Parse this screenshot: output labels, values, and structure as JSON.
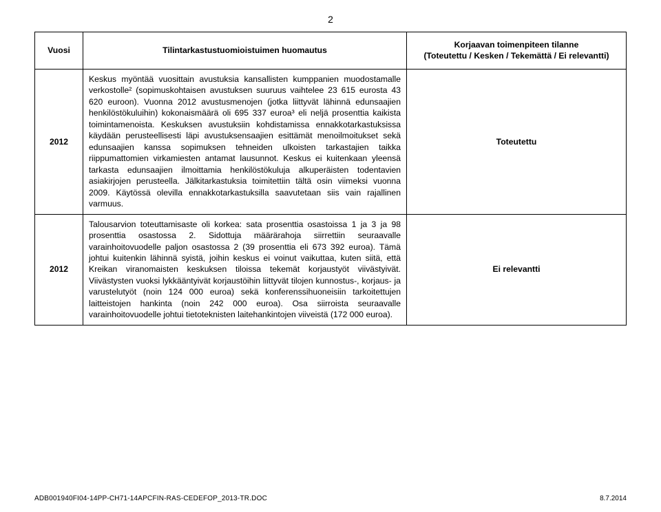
{
  "pageNumber": "2",
  "header": {
    "col1": "Vuosi",
    "col2": "Tilintarkastustuomioistuimen huomautus",
    "col3_line1": "Korjaavan toimenpiteen tilanne",
    "col3_line2": "(Toteutettu / Kesken / Tekemättä / Ei relevantti)"
  },
  "rows": [
    {
      "year": "2012",
      "observation": "Keskus myöntää vuosittain avustuksia kansallisten kumppanien muodostamalle verkostolle² (sopimuskohtaisen avustuksen suuruus vaihtelee 23 615 eurosta 43 620 euroon). Vuonna 2012 avustusmenojen (jotka liittyvät lähinnä edunsaajien henkilöstökuluihin) kokonaismäärä oli 695 337 euroa³ eli neljä prosenttia kaikista toimintamenoista. Keskuksen avustuksiin kohdistamissa ennakkotarkastuksissa käydään perusteellisesti läpi avustuksensaajien esittämät menoilmoitukset sekä edunsaajien kanssa sopimuksen tehneiden ulkoisten tarkastajien taikka riippumattomien virkamiesten antamat lausunnot. Keskus ei kuitenkaan yleensä tarkasta edunsaajien ilmoittamia henkilöstökuluja alkuperäisten todentavien asiakirjojen perusteella. Jälkitarkastuksia toimitettiin tältä osin viimeksi vuonna 2009. Käytössä olevilla ennakkotarkastuksilla saavutetaan siis vain rajallinen varmuus.",
      "status": "Toteutettu"
    },
    {
      "year": "2012",
      "observation": "Talousarvion toteuttamisaste oli korkea: sata prosenttia osastoissa 1 ja 3 ja 98 prosenttia osastossa 2. Sidottuja määrärahoja siirrettiin seuraavalle varainhoitovuodelle paljon osastossa 2 (39 prosenttia eli 673 392 euroa). Tämä johtui kuitenkin lähinnä syistä, joihin keskus ei voinut vaikuttaa, kuten siitä, että Kreikan viranomaisten keskuksen tiloissa tekemät korjaustyöt viivästyivät. Viivästysten vuoksi lykkääntyivät korjaustöihin liittyvät tilojen kunnostus-, korjaus- ja varustelutyöt (noin 124 000 euroa) sekä konferenssihuoneisiin tarkoitettujen laitteistojen hankinta (noin 242 000 euroa). Osa siirroista seuraavalle varainhoitovuodelle johtui tietoteknisten laitehankintojen viiveistä (172 000 euroa).",
      "status": "Ei relevantti"
    }
  ],
  "footer": {
    "left_code": "ADB001940FI04-14PP-CH71-14APCFIN-RAS-CEDEFOP_2013-TR",
    "left_ext": ".DOC",
    "right": "8.7.2014"
  }
}
